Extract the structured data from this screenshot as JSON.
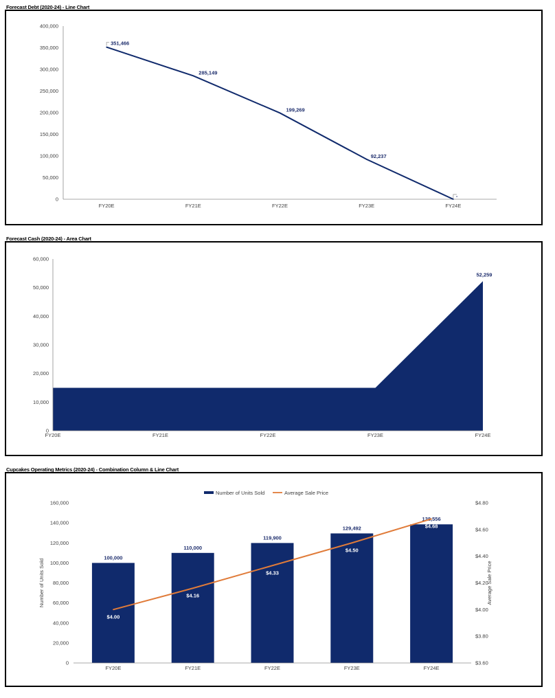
{
  "colors": {
    "navy": "#102a6c",
    "orange": "#e07b39",
    "axis": "#8c8c8c",
    "text": "#404040"
  },
  "chart_data": [
    {
      "type": "line",
      "title": "Forecast Debt (2020-24) - Line Chart",
      "categories": [
        "FY20E",
        "FY21E",
        "FY22E",
        "FY23E",
        "FY24E"
      ],
      "series": [
        {
          "values": [
            351466,
            285149,
            199269,
            92237,
            0
          ]
        }
      ],
      "data_labels": [
        "351,466",
        "285,149",
        "199,269",
        "92,237",
        "-"
      ],
      "ylim": [
        0,
        400000
      ],
      "yticks": [
        "0",
        "50,000",
        "100,000",
        "150,000",
        "200,000",
        "250,000",
        "300,000",
        "350,000",
        "400,000"
      ],
      "grid": false,
      "legend": "none"
    },
    {
      "type": "area",
      "title": "Forecast Cash (2020-24) - Area Chart",
      "categories": [
        "FY20E",
        "FY21E",
        "FY22E",
        "FY23E",
        "FY24E"
      ],
      "series": [
        {
          "values": [
            15000,
            15000,
            15000,
            15000,
            52259
          ]
        }
      ],
      "data_labels": [
        "52,259"
      ],
      "ylim": [
        0,
        60000
      ],
      "yticks": [
        "0",
        "10,000",
        "20,000",
        "30,000",
        "40,000",
        "50,000",
        "60,000"
      ],
      "grid": false,
      "legend": "none"
    },
    {
      "type": "bar",
      "title": "Cupcakes Operating Metrics (2020-24) - Combination Column & Line Chart",
      "categories": [
        "FY20E",
        "FY21E",
        "FY22E",
        "FY23E",
        "FY24E"
      ],
      "series": [
        {
          "name": "Number of Units Sold",
          "type": "bar",
          "axis": "left",
          "values": [
            100000,
            110000,
            119900,
            129492,
            138556
          ],
          "data_labels": [
            "100,000",
            "110,000",
            "119,900",
            "129,492",
            "138,556"
          ]
        },
        {
          "name": "Average Sale Price",
          "type": "line",
          "axis": "right",
          "values": [
            4.0,
            4.16,
            4.33,
            4.5,
            4.68
          ],
          "data_labels": [
            "$4.00",
            "$4.16",
            "$4.33",
            "$4.50",
            "$4.68"
          ]
        }
      ],
      "ylabel": "Number of Units Sold",
      "y2label": "Average Sale Price",
      "ylim": [
        0,
        160000
      ],
      "y2lim": [
        3.6,
        4.8
      ],
      "yticks": [
        "0",
        "20,000",
        "40,000",
        "60,000",
        "80,000",
        "100,000",
        "120,000",
        "140,000",
        "160,000"
      ],
      "y2ticks": [
        "$3.60",
        "$3.80",
        "$4.00",
        "$4.20",
        "$4.40",
        "$4.60",
        "$4.80"
      ],
      "grid": false,
      "legend": "top-center"
    }
  ]
}
